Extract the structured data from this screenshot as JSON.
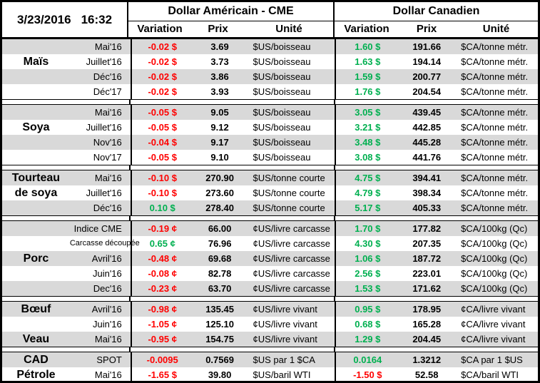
{
  "colors": {
    "positive": "#00B050",
    "negative": "#FF0000",
    "stripe": "#D9D9D9",
    "border": "#000000"
  },
  "header": {
    "date": "3/23/2016",
    "time": "16:32",
    "sections": [
      {
        "title": "Dollar Américain - CME",
        "columns": [
          "Variation",
          "Prix",
          "Unité"
        ]
      },
      {
        "title": "Dollar Canadien",
        "columns": [
          "Variation",
          "Prix",
          "Unité"
        ]
      }
    ]
  },
  "groups": [
    {
      "rows": [
        {
          "category": "",
          "contract": "Mai'16",
          "us_variation": "-0.02 $",
          "us_prix": "3.69",
          "us_unite": "$US/boisseau",
          "ca_variation": "1.60 $",
          "ca_prix": "191.66",
          "ca_unite": "$CA/tonne métr."
        },
        {
          "category": "Maïs",
          "contract": "Juillet'16",
          "us_variation": "-0.02 $",
          "us_prix": "3.73",
          "us_unite": "$US/boisseau",
          "ca_variation": "1.63 $",
          "ca_prix": "194.14",
          "ca_unite": "$CA/tonne métr."
        },
        {
          "category": "",
          "contract": "Déc'16",
          "us_variation": "-0.02 $",
          "us_prix": "3.86",
          "us_unite": "$US/boisseau",
          "ca_variation": "1.59 $",
          "ca_prix": "200.77",
          "ca_unite": "$CA/tonne métr."
        },
        {
          "category": "",
          "contract": "Déc'17",
          "us_variation": "-0.02 $",
          "us_prix": "3.93",
          "us_unite": "$US/boisseau",
          "ca_variation": "1.76 $",
          "ca_prix": "204.54",
          "ca_unite": "$CA/tonne métr."
        }
      ]
    },
    {
      "rows": [
        {
          "category": "",
          "contract": "Mai'16",
          "us_variation": "-0.05 $",
          "us_prix": "9.05",
          "us_unite": "$US/boisseau",
          "ca_variation": "3.05 $",
          "ca_prix": "439.45",
          "ca_unite": "$CA/tonne métr."
        },
        {
          "category": "Soya",
          "contract": "Juillet'16",
          "us_variation": "-0.05 $",
          "us_prix": "9.12",
          "us_unite": "$US/boisseau",
          "ca_variation": "3.21 $",
          "ca_prix": "442.85",
          "ca_unite": "$CA/tonne métr."
        },
        {
          "category": "",
          "contract": "Nov'16",
          "us_variation": "-0.04 $",
          "us_prix": "9.17",
          "us_unite": "$US/boisseau",
          "ca_variation": "3.48 $",
          "ca_prix": "445.28",
          "ca_unite": "$CA/tonne métr."
        },
        {
          "category": "",
          "contract": "Nov'17",
          "us_variation": "-0.05 $",
          "us_prix": "9.10",
          "us_unite": "$US/boisseau",
          "ca_variation": "3.08 $",
          "ca_prix": "441.76",
          "ca_unite": "$CA/tonne métr."
        }
      ]
    },
    {
      "rows": [
        {
          "category": "Tourteau",
          "contract": "Mai'16",
          "us_variation": "-0.10 $",
          "us_prix": "270.90",
          "us_unite": "$US/tonne courte",
          "ca_variation": "4.75 $",
          "ca_prix": "394.41",
          "ca_unite": "$CA/tonne métr."
        },
        {
          "category": "de soya",
          "contract": "Juillet'16",
          "us_variation": "-0.10 $",
          "us_prix": "273.60",
          "us_unite": "$US/tonne courte",
          "ca_variation": "4.79 $",
          "ca_prix": "398.34",
          "ca_unite": "$CA/tonne métr."
        },
        {
          "category": "",
          "contract": "Déc'16",
          "us_variation": "0.10 $",
          "us_prix": "278.40",
          "us_unite": "$US/tonne courte",
          "ca_variation": "5.17 $",
          "ca_prix": "405.33",
          "ca_unite": "$CA/tonne métr."
        }
      ]
    },
    {
      "rows": [
        {
          "category": "",
          "contract": "Indice CME",
          "us_variation": "-0.19 ¢",
          "us_prix": "66.00",
          "us_unite": "¢US/livre carcasse",
          "ca_variation": "1.70 $",
          "ca_prix": "177.82",
          "ca_unite": "$CA/100kg (Qc)"
        },
        {
          "category": "",
          "contract": "Carcasse découpée",
          "us_variation": "0.65 ¢",
          "us_prix": "76.96",
          "us_unite": "¢US/livre carcasse",
          "ca_variation": "4.30 $",
          "ca_prix": "207.35",
          "ca_unite": "$CA/100kg (Qc)"
        },
        {
          "category": "Porc",
          "contract": "Avril'16",
          "us_variation": "-0.48 ¢",
          "us_prix": "69.68",
          "us_unite": "¢US/livre carcasse",
          "ca_variation": "1.06 $",
          "ca_prix": "187.72",
          "ca_unite": "$CA/100kg (Qc)"
        },
        {
          "category": "",
          "contract": "Juin'16",
          "us_variation": "-0.08 ¢",
          "us_prix": "82.78",
          "us_unite": "¢US/livre carcasse",
          "ca_variation": "2.56 $",
          "ca_prix": "223.01",
          "ca_unite": "$CA/100kg (Qc)"
        },
        {
          "category": "",
          "contract": "Dec'16",
          "us_variation": "-0.23 ¢",
          "us_prix": "63.70",
          "us_unite": "¢US/livre carcasse",
          "ca_variation": "1.53 $",
          "ca_prix": "171.62",
          "ca_unite": "$CA/100kg (Qc)"
        }
      ]
    },
    {
      "rows": [
        {
          "category": "Bœuf",
          "contract": "Avril'16",
          "us_variation": "-0.98 ¢",
          "us_prix": "135.45",
          "us_unite": "¢US/livre vivant",
          "ca_variation": "0.95 $",
          "ca_prix": "178.95",
          "ca_unite": "¢CA/livre vivant"
        },
        {
          "category": "",
          "contract": "Juin'16",
          "us_variation": "-1.05 ¢",
          "us_prix": "125.10",
          "us_unite": "¢US/livre vivant",
          "ca_variation": "0.68 $",
          "ca_prix": "165.28",
          "ca_unite": "¢CA/livre vivant"
        },
        {
          "category": "Veau",
          "contract": "Mai'16",
          "us_variation": "-0.95 ¢",
          "us_prix": "154.75",
          "us_unite": "¢US/livre vivant",
          "ca_variation": "1.29 $",
          "ca_prix": "204.45",
          "ca_unite": "¢CA/livre vivant"
        }
      ]
    },
    {
      "rows": [
        {
          "category": "CAD",
          "contract": "SPOT",
          "us_variation": "-0.0095",
          "us_prix": "0.7569",
          "us_unite": "$US par 1 $CA",
          "ca_variation": "0.0164",
          "ca_prix": "1.3212",
          "ca_unite": "$CA par 1 $US"
        },
        {
          "category": "Pétrole",
          "contract": "Mai'16",
          "us_variation": "-1.65 $",
          "us_prix": "39.80",
          "us_unite": "$US/baril WTI",
          "ca_variation": "-1.50 $",
          "ca_prix": "52.58",
          "ca_unite": "$CA/baril WTI"
        }
      ]
    }
  ]
}
